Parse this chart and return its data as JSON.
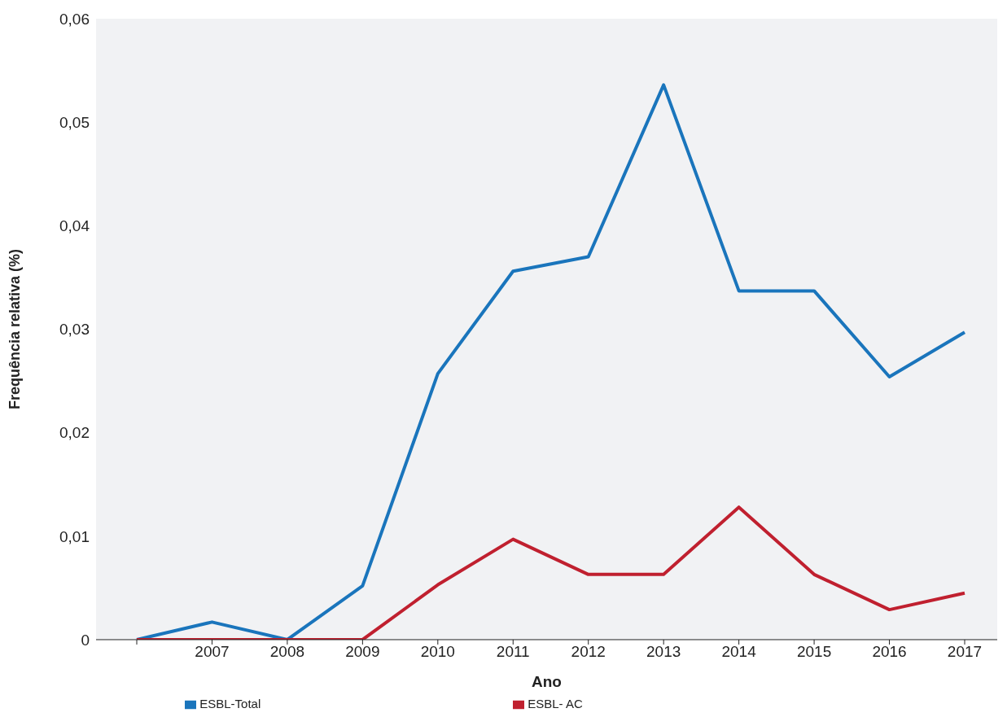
{
  "chart_data": {
    "type": "line",
    "xlabel": "Ano",
    "ylabel": "Frequência relativa (%)",
    "categories": [
      null,
      "2007",
      "2008",
      "2009",
      "2010",
      "2011",
      "2012",
      "2013",
      "2014",
      "2015",
      "2016",
      "2017"
    ],
    "series": [
      {
        "name": "ESBL-Total",
        "color": "#1a75bc",
        "values": [
          0,
          0.0017,
          0,
          0.0052,
          0.0257,
          0.0356,
          0.037,
          0.0536,
          0.0337,
          0.0337,
          0.0254,
          0.0297
        ]
      },
      {
        "name": "ESBL- AC",
        "color": "#c0202f",
        "values": [
          0,
          0,
          0,
          0,
          0.0053,
          0.0097,
          0.0063,
          0.0063,
          0.0128,
          0.0063,
          0.0029,
          0.0045
        ]
      }
    ],
    "ylim": [
      0,
      0.06
    ],
    "yticks": [
      {
        "value": 0,
        "label": "0"
      },
      {
        "value": 0.01,
        "label": "0,01"
      },
      {
        "value": 0.02,
        "label": "0,02"
      },
      {
        "value": 0.03,
        "label": "0,03"
      },
      {
        "value": 0.04,
        "label": "0,04"
      },
      {
        "value": 0.05,
        "label": "0,05"
      },
      {
        "value": 0.06,
        "label": "0,06"
      }
    ],
    "grid": false,
    "legend": "bottom",
    "marker": "none",
    "line_style": "solid"
  }
}
